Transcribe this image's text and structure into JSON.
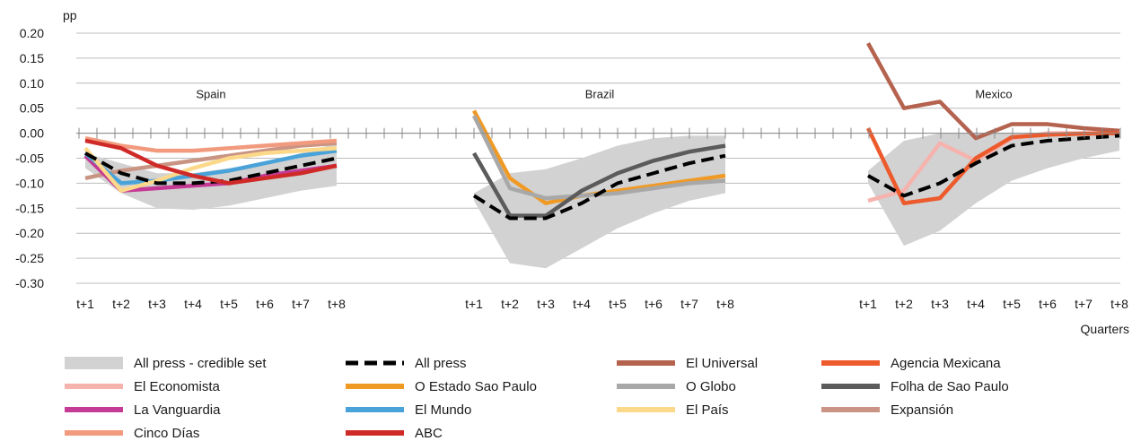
{
  "chart_data": {
    "type": "line",
    "ylabel": "pp",
    "xlabel": "Quarters",
    "ylim": [
      -0.3,
      0.2
    ],
    "yticks": [
      0.2,
      0.15,
      0.1,
      0.05,
      0.0,
      -0.05,
      -0.1,
      -0.15,
      -0.2,
      -0.25,
      -0.3
    ],
    "ytick_labels": [
      "0.20",
      "0.15",
      "0.10",
      "0.05",
      "0.00",
      "-0.05",
      "-0.10",
      "-0.15",
      "-0.20",
      "-0.25",
      "-0.30"
    ],
    "grid": true,
    "legend_position": "bottom",
    "categories": [
      "t+1",
      "t+2",
      "t+3",
      "t+4",
      "t+5",
      "t+6",
      "t+7",
      "t+8"
    ],
    "panels": [
      {
        "name": "Spain",
        "band": {
          "name": "All press - credible set",
          "upper": [
            -0.04,
            -0.06,
            -0.08,
            -0.08,
            -0.07,
            -0.06,
            -0.04,
            -0.02
          ],
          "lower": [
            -0.07,
            -0.12,
            -0.15,
            -0.153,
            -0.145,
            -0.13,
            -0.115,
            -0.105
          ]
        },
        "series": [
          {
            "name": "Expansión",
            "values": [
              -0.09,
              -0.075,
              -0.065,
              -0.055,
              -0.045,
              -0.035,
              -0.025,
              -0.02
            ]
          },
          {
            "name": "Cinco Días",
            "values": [
              -0.01,
              -0.025,
              -0.035,
              -0.035,
              -0.03,
              -0.025,
              -0.02,
              -0.015
            ]
          },
          {
            "name": "La Vanguardia",
            "values": [
              -0.045,
              -0.115,
              -0.11,
              -0.105,
              -0.1,
              -0.085,
              -0.075,
              -0.065
            ]
          },
          {
            "name": "El Mundo",
            "values": [
              -0.04,
              -0.1,
              -0.095,
              -0.085,
              -0.075,
              -0.06,
              -0.045,
              -0.035
            ]
          },
          {
            "name": "El País",
            "values": [
              -0.03,
              -0.115,
              -0.095,
              -0.07,
              -0.05,
              -0.04,
              -0.035,
              -0.03
            ]
          },
          {
            "name": "All press",
            "values": [
              -0.04,
              -0.08,
              -0.1,
              -0.1,
              -0.095,
              -0.08,
              -0.065,
              -0.05
            ]
          },
          {
            "name": "ABC",
            "values": [
              -0.015,
              -0.03,
              -0.065,
              -0.085,
              -0.1,
              -0.09,
              -0.08,
              -0.065
            ]
          }
        ]
      },
      {
        "name": "Brazil",
        "band": {
          "name": "All press - credible set",
          "upper": [
            -0.12,
            -0.08,
            -0.072,
            -0.05,
            -0.025,
            -0.01,
            -0.005,
            -0.005
          ],
          "lower": [
            -0.135,
            -0.26,
            -0.27,
            -0.23,
            -0.19,
            -0.16,
            -0.135,
            -0.12
          ]
        },
        "series": [
          {
            "name": "O Estado Sao Paulo",
            "values": [
              0.045,
              -0.09,
              -0.14,
              -0.125,
              -0.115,
              -0.105,
              -0.095,
              -0.085
            ]
          },
          {
            "name": "O Globo",
            "values": [
              0.035,
              -0.11,
              -0.13,
              -0.125,
              -0.12,
              -0.11,
              -0.1,
              -0.095
            ]
          },
          {
            "name": "Folha de Sao Paulo",
            "values": [
              -0.04,
              -0.165,
              -0.165,
              -0.115,
              -0.08,
              -0.055,
              -0.037,
              -0.025
            ]
          },
          {
            "name": "All press",
            "values": [
              -0.125,
              -0.17,
              -0.17,
              -0.14,
              -0.1,
              -0.08,
              -0.06,
              -0.045
            ]
          }
        ]
      },
      {
        "name": "Mexico",
        "band": {
          "name": "All press - credible set",
          "upper": [
            -0.075,
            -0.015,
            -0.0,
            0.0,
            0.0,
            0.0,
            0.0,
            0.0
          ],
          "lower": [
            -0.1,
            -0.225,
            -0.195,
            -0.14,
            -0.095,
            -0.07,
            -0.05,
            -0.035
          ]
        },
        "series": [
          {
            "name": "El Economista",
            "values": [
              -0.135,
              -0.115,
              -0.02,
              -0.055,
              -0.01,
              0.0,
              0.0,
              0.0
            ]
          },
          {
            "name": "El Universal",
            "values": [
              0.18,
              0.05,
              0.063,
              -0.01,
              0.018,
              0.018,
              0.01,
              0.005
            ]
          },
          {
            "name": "Agencia Mexicana",
            "values": [
              0.01,
              -0.14,
              -0.13,
              -0.05,
              -0.008,
              -0.003,
              -0.001,
              0.0
            ]
          },
          {
            "name": "All press",
            "values": [
              -0.085,
              -0.125,
              -0.1,
              -0.06,
              -0.025,
              -0.015,
              -0.01,
              -0.005
            ]
          }
        ]
      }
    ],
    "legend": [
      {
        "name": "All press - credible set",
        "color": "#d2d2d2",
        "style": "band"
      },
      {
        "name": "All press",
        "color": "#000000",
        "style": "dashed"
      },
      {
        "name": "El Universal",
        "color": "#b5624f",
        "style": "solid"
      },
      {
        "name": "Agencia Mexicana",
        "color": "#ed5a2c",
        "style": "solid"
      },
      {
        "name": "El Economista",
        "color": "#f6b3ae",
        "style": "solid"
      },
      {
        "name": "O Estado Sao Paulo",
        "color": "#f09a26",
        "style": "solid"
      },
      {
        "name": "O Globo",
        "color": "#a8a8a8",
        "style": "solid"
      },
      {
        "name": "Folha de Sao Paulo",
        "color": "#5b5b5b",
        "style": "solid"
      },
      {
        "name": "La Vanguardia",
        "color": "#c53a95",
        "style": "solid"
      },
      {
        "name": "El Mundo",
        "color": "#49a3d9",
        "style": "solid"
      },
      {
        "name": "El País",
        "color": "#fcd98a",
        "style": "solid"
      },
      {
        "name": "Expansión",
        "color": "#c99484",
        "style": "solid"
      },
      {
        "name": "Cinco Días",
        "color": "#f29a7e",
        "style": "solid"
      },
      {
        "name": "ABC",
        "color": "#cf2a27",
        "style": "solid"
      }
    ]
  }
}
